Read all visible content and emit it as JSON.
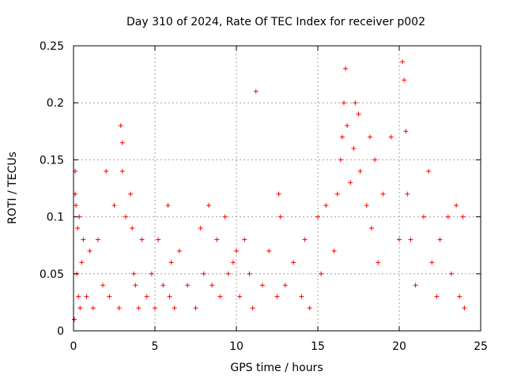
{
  "chart_data": {
    "type": "scatter",
    "title": "Day 310 of 2024, Rate Of TEC Index for receiver p002",
    "xlabel": "GPS time / hours",
    "ylabel": "ROTI / TECUs",
    "xlim": [
      0,
      25
    ],
    "ylim": [
      0,
      0.25
    ],
    "xticks": [
      0,
      5,
      10,
      15,
      20,
      25
    ],
    "xtick_labels": [
      "0",
      "5",
      "10",
      "15",
      "20",
      "25"
    ],
    "yticks": [
      0,
      0.05,
      0.1,
      0.15,
      0.2,
      0.25
    ],
    "ytick_labels": [
      "0",
      "0.05",
      "0.1",
      "0.15",
      "0.2",
      "0.25"
    ],
    "grid": true,
    "marker": "+",
    "marker_color": "#ff0000",
    "series": [
      {
        "name": "ROTI",
        "x": [
          0.05,
          0.1,
          0.1,
          0.15,
          0.2,
          0.25,
          0.3,
          0.35,
          0.4,
          0.5,
          0.6,
          0.8,
          1.0,
          1.2,
          1.5,
          1.8,
          2.0,
          2.2,
          2.5,
          2.8,
          2.9,
          3.0,
          3.0,
          3.2,
          3.5,
          3.6,
          3.7,
          3.8,
          4.0,
          4.2,
          4.5,
          4.8,
          5.0,
          5.2,
          5.5,
          5.8,
          5.9,
          6.0,
          6.2,
          6.5,
          7.0,
          7.5,
          7.8,
          8.0,
          8.3,
          8.5,
          8.8,
          9.0,
          9.3,
          9.5,
          9.8,
          10.0,
          10.2,
          10.5,
          10.8,
          11.0,
          11.2,
          11.6,
          12.0,
          12.5,
          12.6,
          12.7,
          13.0,
          13.5,
          14.0,
          14.2,
          14.5,
          15.0,
          15.2,
          15.5,
          16.0,
          16.2,
          16.4,
          16.5,
          16.6,
          16.7,
          16.8,
          17.0,
          17.2,
          17.3,
          17.5,
          17.6,
          18.0,
          18.2,
          18.3,
          18.5,
          18.7,
          19.0,
          19.5,
          20.0,
          20.2,
          20.3,
          20.4,
          20.5,
          20.7,
          21.0,
          21.5,
          21.8,
          22.0,
          22.3,
          22.5,
          23.0,
          23.2,
          23.5,
          23.7,
          23.9,
          24.0
        ],
        "y": [
          0.01,
          0.14,
          0.12,
          0.11,
          0.05,
          0.09,
          0.03,
          0.1,
          0.02,
          0.06,
          0.08,
          0.03,
          0.07,
          0.02,
          0.08,
          0.04,
          0.14,
          0.03,
          0.11,
          0.02,
          0.18,
          0.165,
          0.14,
          0.1,
          0.12,
          0.09,
          0.05,
          0.04,
          0.02,
          0.08,
          0.03,
          0.05,
          0.02,
          0.08,
          0.04,
          0.11,
          0.03,
          0.06,
          0.02,
          0.07,
          0.04,
          0.02,
          0.09,
          0.05,
          0.11,
          0.04,
          0.08,
          0.03,
          0.1,
          0.05,
          0.06,
          0.07,
          0.03,
          0.08,
          0.05,
          0.02,
          0.21,
          0.04,
          0.07,
          0.03,
          0.12,
          0.1,
          0.04,
          0.06,
          0.03,
          0.08,
          0.02,
          0.1,
          0.05,
          0.11,
          0.07,
          0.12,
          0.15,
          0.17,
          0.2,
          0.23,
          0.18,
          0.13,
          0.16,
          0.2,
          0.19,
          0.14,
          0.11,
          0.17,
          0.09,
          0.15,
          0.06,
          0.12,
          0.17,
          0.08,
          0.236,
          0.22,
          0.175,
          0.12,
          0.08,
          0.04,
          0.1,
          0.14,
          0.06,
          0.03,
          0.08,
          0.1,
          0.05,
          0.11,
          0.03,
          0.1,
          0.02
        ]
      }
    ]
  }
}
